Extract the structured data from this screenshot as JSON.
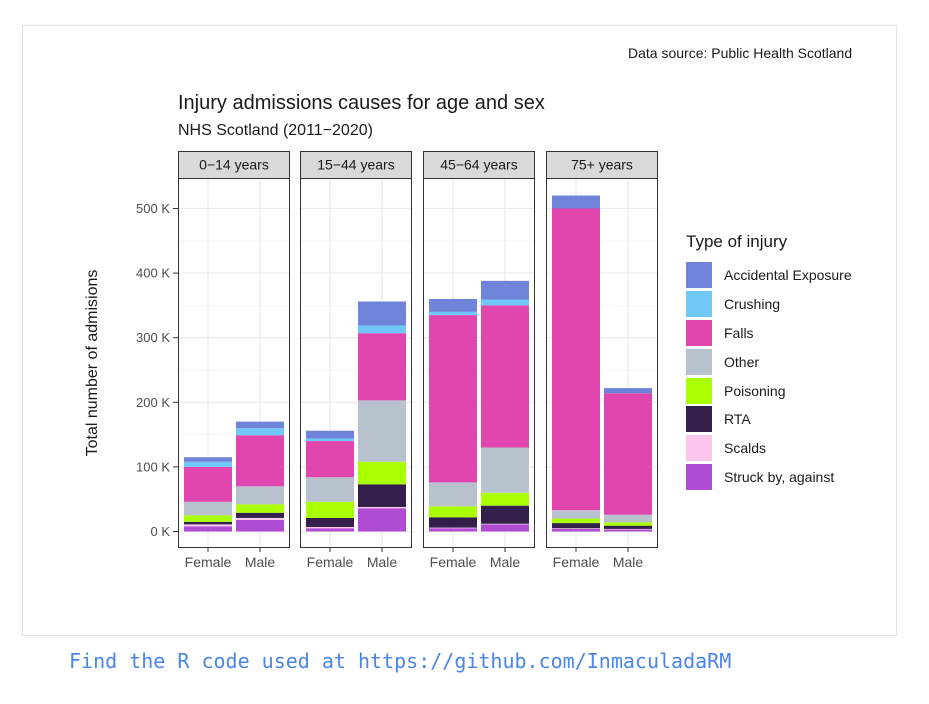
{
  "caption": "Data source: Public Health Scotland",
  "footer": "Find the R code used at https://github.com/InmaculadaRM",
  "chart_data": {
    "type": "bar",
    "stacked": true,
    "title": "Injury admissions causes for age and sex",
    "subtitle": "NHS Scotland (2011−2020)",
    "xlabel": "",
    "ylabel": "Total number of admisions",
    "ylim": [
      0,
      530000
    ],
    "yticks": [
      0,
      100000,
      200000,
      300000,
      400000,
      500000
    ],
    "ytick_labels": [
      "0 K",
      "100 K",
      "200 K",
      "300 K",
      "400 K",
      "500 K"
    ],
    "grid": true,
    "legend_title": "Type of injury",
    "legend_position": "right",
    "facets": [
      "0−14 years",
      "15−44 years",
      "45−64 years",
      "75+ years"
    ],
    "categories": [
      "Female",
      "Male"
    ],
    "series": [
      {
        "name": "Struck by, against",
        "color": "#b04bd4",
        "values": [
          [
            8000,
            18000
          ],
          [
            5000,
            36000
          ],
          [
            5000,
            11000
          ],
          [
            4000,
            3000
          ]
        ]
      },
      {
        "name": "Scalds",
        "color": "#fcc6ec",
        "values": [
          [
            3000,
            3000
          ],
          [
            2000,
            2000
          ],
          [
            1000,
            1000
          ],
          [
            1000,
            1000
          ]
        ]
      },
      {
        "name": "RTA",
        "color": "#32204a",
        "values": [
          [
            4000,
            8000
          ],
          [
            14000,
            35000
          ],
          [
            16000,
            28000
          ],
          [
            8000,
            5000
          ]
        ]
      },
      {
        "name": "Poisoning",
        "color": "#aaff00",
        "values": [
          [
            10000,
            13000
          ],
          [
            25000,
            35000
          ],
          [
            17000,
            20000
          ],
          [
            7000,
            5000
          ]
        ]
      },
      {
        "name": "Other",
        "color": "#b8c2ce",
        "values": [
          [
            21000,
            28000
          ],
          [
            38000,
            95000
          ],
          [
            37000,
            70000
          ],
          [
            13000,
            12000
          ]
        ]
      },
      {
        "name": "Falls",
        "color": "#e046ae",
        "values": [
          [
            54000,
            79000
          ],
          [
            56000,
            104000
          ],
          [
            259000,
            220000
          ],
          [
            467000,
            188000
          ]
        ]
      },
      {
        "name": "Crushing",
        "color": "#70c8f8",
        "values": [
          [
            8000,
            11000
          ],
          [
            4000,
            12000
          ],
          [
            5000,
            9000
          ],
          [
            0,
            0
          ]
        ]
      },
      {
        "name": "Accidental Exposure",
        "color": "#6f83d8",
        "values": [
          [
            7000,
            10000
          ],
          [
            12000,
            37000
          ],
          [
            20000,
            29000
          ],
          [
            20000,
            8000
          ]
        ]
      }
    ],
    "legend_order": [
      "Accidental Exposure",
      "Crushing",
      "Falls",
      "Other",
      "Poisoning",
      "RTA",
      "Scalds",
      "Struck by, against"
    ]
  }
}
